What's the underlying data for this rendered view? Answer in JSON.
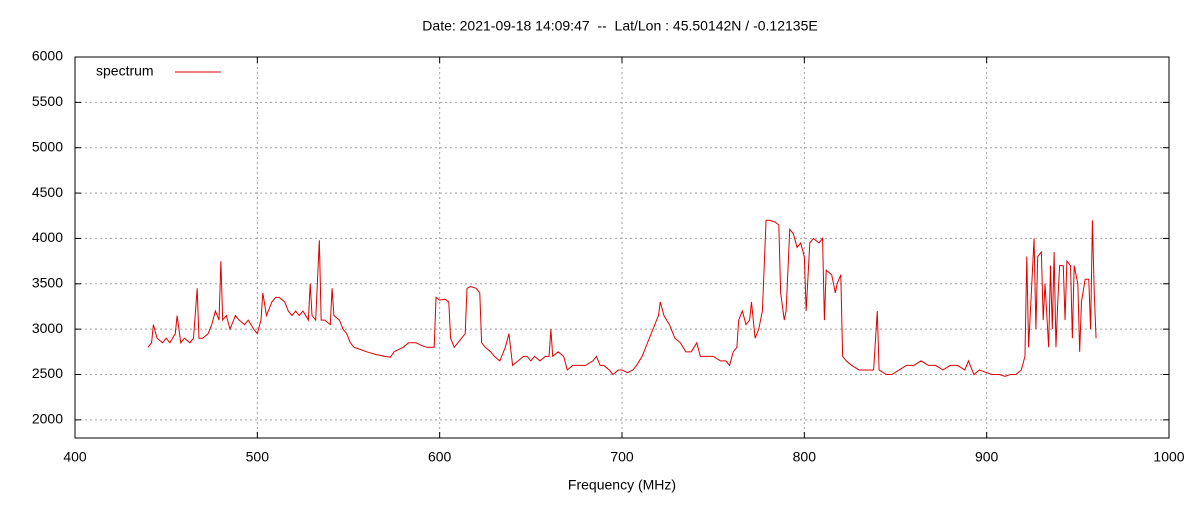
{
  "chart_data": {
    "type": "line",
    "title": "Date: 2021-09-18 14:09:47  --  Lat/Lon : 45.50142N / -0.12135E",
    "x_label": "Frequency (MHz)",
    "xlim": [
      400,
      1000
    ],
    "xticks": [
      400,
      500,
      600,
      700,
      800,
      900,
      1000
    ],
    "ylim": [
      1800,
      6000
    ],
    "yticks": [
      2000,
      2500,
      3000,
      3500,
      4000,
      4500,
      5000,
      5500,
      6000
    ],
    "grid": true,
    "legend": "top-left",
    "series": [
      {
        "name": "spectrum",
        "color": "#e00000",
        "x": [
          440,
          442,
          443,
          445,
          448,
          450,
          452,
          455,
          456,
          458,
          460,
          463,
          465,
          467,
          468,
          470,
          473,
          475,
          477,
          479,
          480,
          481,
          483,
          485,
          488,
          490,
          493,
          495,
          498,
          500,
          502,
          503,
          505,
          508,
          510,
          512,
          515,
          517,
          519,
          521,
          523,
          525,
          528,
          529,
          530,
          532,
          534,
          535,
          537,
          540,
          541,
          542,
          545,
          547,
          549,
          551,
          553,
          556,
          560,
          565,
          570,
          573,
          575,
          578,
          580,
          583,
          587,
          590,
          593,
          597,
          598,
          600,
          603,
          605,
          606,
          608,
          610,
          612,
          614,
          615,
          617,
          620,
          622,
          623,
          625,
          628,
          630,
          633,
          636,
          638,
          640,
          643,
          646,
          648,
          650,
          652,
          655,
          658,
          660,
          661,
          662,
          665,
          668,
          670,
          673,
          676,
          680,
          684,
          686,
          688,
          690,
          693,
          695,
          698,
          700,
          703,
          706,
          708,
          711,
          714,
          717,
          720,
          721,
          723,
          726,
          729,
          732,
          735,
          738,
          741,
          743,
          746,
          750,
          754,
          757,
          759,
          761,
          763,
          764,
          766,
          768,
          770,
          771,
          773,
          775,
          777,
          779,
          781,
          784,
          786,
          787,
          789,
          790,
          792,
          794,
          796,
          798,
          800,
          801,
          803,
          805,
          808,
          810,
          811,
          812,
          815,
          817,
          818,
          820,
          821,
          823,
          826,
          830,
          835,
          838,
          840,
          841,
          845,
          848,
          852,
          856,
          860,
          864,
          868,
          872,
          876,
          880,
          884,
          888,
          890,
          893,
          896,
          900,
          903,
          907,
          910,
          913,
          916,
          919,
          921,
          922,
          923,
          925,
          926,
          927,
          928,
          930,
          931,
          932,
          934,
          935,
          936,
          937,
          938,
          939,
          940,
          942,
          943,
          944,
          946,
          947,
          948,
          950,
          951,
          952,
          954,
          956,
          957,
          958,
          959,
          960
        ],
        "values": [
          2800,
          2850,
          3050,
          2900,
          2850,
          2900,
          2850,
          2950,
          3150,
          2850,
          2900,
          2850,
          2900,
          3450,
          2900,
          2900,
          2950,
          3050,
          3200,
          3100,
          3750,
          3100,
          3150,
          3000,
          3150,
          3100,
          3050,
          3100,
          3000,
          2950,
          3100,
          3400,
          3150,
          3300,
          3350,
          3350,
          3300,
          3200,
          3150,
          3200,
          3150,
          3200,
          3100,
          3500,
          3150,
          3100,
          3980,
          3100,
          3100,
          3050,
          3450,
          3150,
          3100,
          3000,
          2950,
          2850,
          2800,
          2780,
          2750,
          2720,
          2700,
          2690,
          2750,
          2780,
          2800,
          2850,
          2850,
          2820,
          2800,
          2800,
          3350,
          3320,
          3330,
          3300,
          2900,
          2800,
          2850,
          2900,
          2950,
          3450,
          3470,
          3450,
          3400,
          2850,
          2800,
          2750,
          2700,
          2650,
          2800,
          2950,
          2600,
          2650,
          2700,
          2700,
          2650,
          2700,
          2650,
          2700,
          2700,
          3000,
          2700,
          2750,
          2700,
          2550,
          2600,
          2600,
          2600,
          2650,
          2700,
          2600,
          2600,
          2550,
          2500,
          2550,
          2550,
          2520,
          2550,
          2600,
          2700,
          2850,
          3000,
          3150,
          3300,
          3150,
          3050,
          2900,
          2850,
          2750,
          2750,
          2850,
          2700,
          2700,
          2700,
          2650,
          2650,
          2600,
          2750,
          2800,
          3100,
          3200,
          3050,
          3100,
          3300,
          2900,
          3000,
          3200,
          4200,
          4200,
          4180,
          4150,
          3400,
          3100,
          3200,
          4100,
          4050,
          3900,
          3950,
          3800,
          3200,
          3950,
          4000,
          3950,
          4000,
          3100,
          3650,
          3600,
          3400,
          3500,
          3600,
          2700,
          2650,
          2600,
          2550,
          2550,
          2550,
          3200,
          2550,
          2500,
          2500,
          2550,
          2600,
          2600,
          2650,
          2600,
          2600,
          2550,
          2600,
          2600,
          2550,
          2650,
          2500,
          2550,
          2520,
          2500,
          2500,
          2480,
          2500,
          2500,
          2550,
          2700,
          3800,
          2800,
          3600,
          4000,
          3000,
          3800,
          3850,
          3100,
          3500,
          2800,
          3700,
          3000,
          3850,
          2800,
          3300,
          3700,
          3700,
          3100,
          3750,
          3700,
          2900,
          3700,
          3500,
          2750,
          3300,
          3550,
          3550,
          3000,
          4200,
          3400,
          2900
        ]
      }
    ]
  }
}
